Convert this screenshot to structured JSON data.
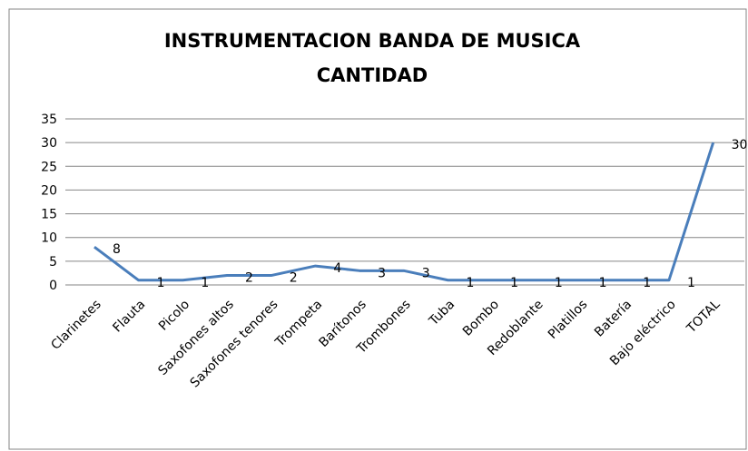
{
  "chart_data": {
    "type": "line",
    "title": [
      "INSTRUMENTACION BANDA DE MUSICA",
      "CANTIDAD"
    ],
    "categories": [
      "Clarinetes",
      "Flauta",
      "Picolo",
      "Saxofones altos",
      "Saxofones tenores",
      "Trompeta",
      "Barítonos",
      "Trombones",
      "Tuba",
      "Bombo",
      "Redoblante",
      "Platillos",
      "Batería",
      "Bajo eléctrico",
      "TOTAL"
    ],
    "values": [
      8,
      1,
      1,
      2,
      2,
      4,
      3,
      3,
      1,
      1,
      1,
      1,
      1,
      1,
      30
    ],
    "color": "#4a7ebb",
    "ylim": [
      0,
      35
    ],
    "yticks": [
      0,
      5,
      10,
      15,
      20,
      25,
      30,
      35
    ],
    "grid": true
  }
}
